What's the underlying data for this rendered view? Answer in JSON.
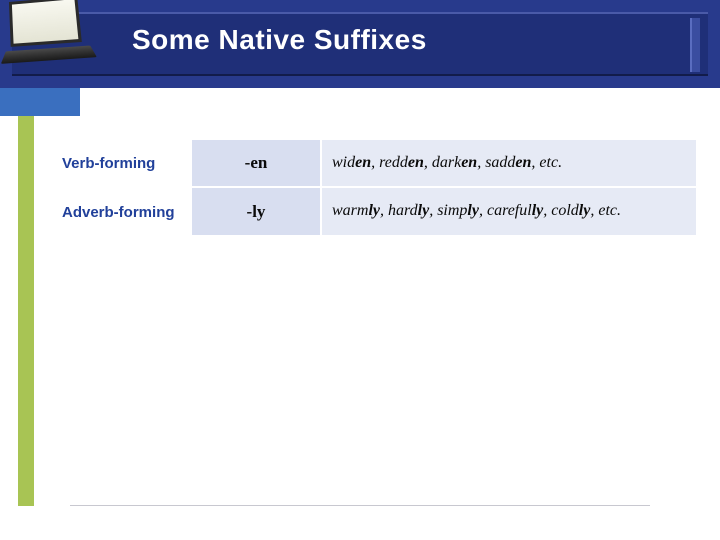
{
  "title": "Some Native Suffixes",
  "colors": {
    "header_bg": "#283a8c",
    "header_inner": "#1f2f78",
    "blue_block": "#3a6fbf",
    "green_bar": "#a8c454",
    "row_label_text": "#21409a",
    "suffix_bg": "#d8def0",
    "examples_bg": "#e6eaf5"
  },
  "rows": [
    {
      "label": "Verb-forming",
      "suffix": "-en",
      "examples_raw": "widen, redden, darken, sadden, etc.",
      "examples": [
        {
          "root": "wid",
          "suf": "en"
        },
        {
          "root": "redd",
          "suf": "en"
        },
        {
          "root": "dark",
          "suf": "en"
        },
        {
          "root": "sadd",
          "suf": "en"
        }
      ],
      "tail": ", etc."
    },
    {
      "label": "Adverb-forming",
      "suffix": "-ly",
      "examples_raw": "warmly, hardly, simply, carefully, coldly, etc.",
      "examples": [
        {
          "root": "warm",
          "suf": "ly"
        },
        {
          "root": "hard",
          "suf": "ly"
        },
        {
          "root": "simp",
          "suf": "ly"
        },
        {
          "root": "careful",
          "suf": "ly"
        },
        {
          "root": "cold",
          "suf": "ly"
        }
      ],
      "tail": ", etc."
    }
  ]
}
